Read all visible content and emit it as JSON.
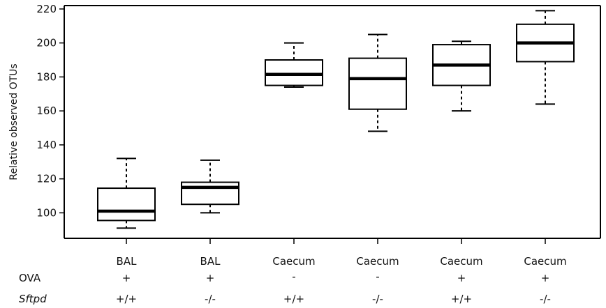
{
  "chart_data": {
    "type": "boxplot",
    "title": "",
    "xlabel": "",
    "ylabel": "Relative observed OTUs",
    "ylim": [
      85,
      222
    ],
    "yticks": [
      100,
      120,
      140,
      160,
      180,
      200,
      220
    ],
    "grid": false,
    "categories": [
      "BAL",
      "BAL",
      "Caecum",
      "Caecum",
      "Caecum",
      "Caecum"
    ],
    "factor_rows": [
      {
        "label": "OVA",
        "italic": false,
        "values": [
          "+",
          "+",
          "-",
          "-",
          "+",
          "+"
        ]
      },
      {
        "label": "Sftpd",
        "italic": true,
        "values": [
          "+/+",
          "-/-",
          "+/+",
          "-/-",
          "+/+",
          "-/-"
        ]
      }
    ],
    "boxes": [
      {
        "whisker_low": 91,
        "q1": 95.5,
        "median": 101,
        "q3": 114.5,
        "whisker_high": 132
      },
      {
        "whisker_low": 100,
        "q1": 105,
        "median": 115,
        "q3": 118,
        "whisker_high": 131
      },
      {
        "whisker_low": 174,
        "q1": 175,
        "median": 181.5,
        "q3": 190,
        "whisker_high": 200
      },
      {
        "whisker_low": 148,
        "q1": 161,
        "median": 179,
        "q3": 191,
        "whisker_high": 205
      },
      {
        "whisker_low": 160,
        "q1": 175,
        "median": 187,
        "q3": 199,
        "whisker_high": 201
      },
      {
        "whisker_low": 164,
        "q1": 189,
        "median": 200,
        "q3": 211,
        "whisker_high": 219
      }
    ]
  }
}
